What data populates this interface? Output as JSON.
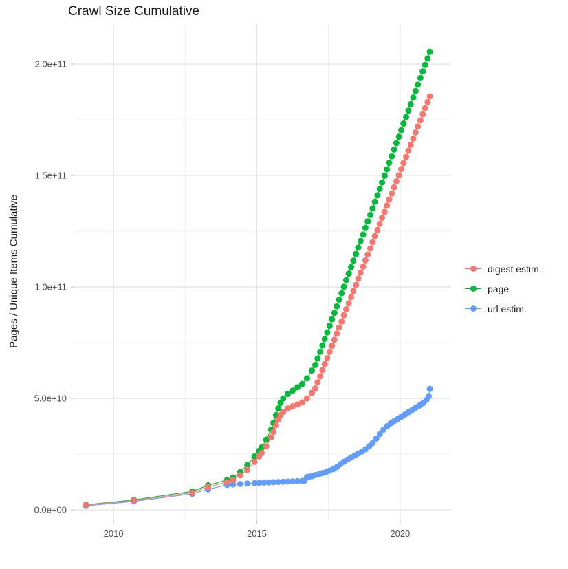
{
  "chart_data": {
    "type": "line-scatter",
    "title": "Crawl Size Cumulative",
    "xlabel": "",
    "ylabel": "Pages / Unique Items Cumulative",
    "y_unit": "1e9 (values below are billions)",
    "grid": "on",
    "legend_position": "right",
    "xlim": [
      2008.63,
      2021.78
    ],
    "ylim": [
      -4.6,
      217.9
    ],
    "x_major_ticks": [
      {
        "label": "2010",
        "value": 2010
      },
      {
        "label": "2015",
        "value": 2015
      },
      {
        "label": "2020",
        "value": 2020
      }
    ],
    "x_minor_gridlines": [
      2012.5,
      2017.5
    ],
    "y_major_ticks": [
      {
        "label": "0.0e+00",
        "value": 0
      },
      {
        "label": "5.0e+10",
        "value": 50
      },
      {
        "label": "1.0e+11",
        "value": 100
      },
      {
        "label": "1.5e+11",
        "value": 150
      },
      {
        "label": "2.0e+11",
        "value": 200
      }
    ],
    "y_minor_gridlines": [
      25,
      75,
      125,
      175
    ],
    "legend": [
      {
        "label": "digest estim.",
        "color": "#F8766D"
      },
      {
        "label": "page",
        "color": "#00BA38"
      },
      {
        "label": "url estim.",
        "color": "#619CFF"
      }
    ],
    "series": [
      {
        "name": "url estim.",
        "color": "#619CFF",
        "points": [
          [
            2009.04,
            1.8
          ],
          [
            2010.71,
            3.8
          ],
          [
            2012.75,
            7.2
          ],
          [
            2013.3,
            9.2
          ],
          [
            2013.96,
            11.2
          ],
          [
            2014.17,
            11.4
          ],
          [
            2014.42,
            11.6
          ],
          [
            2014.67,
            11.8
          ],
          [
            2014.92,
            12.0
          ],
          [
            2015.08,
            12.1
          ],
          [
            2015.25,
            12.2
          ],
          [
            2015.42,
            12.3
          ],
          [
            2015.58,
            12.4
          ],
          [
            2015.75,
            12.5
          ],
          [
            2015.92,
            12.6
          ],
          [
            2016.08,
            12.7
          ],
          [
            2016.25,
            12.8
          ],
          [
            2016.42,
            12.9
          ],
          [
            2016.58,
            13.0
          ],
          [
            2016.67,
            13.1
          ],
          [
            2016.75,
            14.7
          ],
          [
            2016.83,
            14.9
          ],
          [
            2016.92,
            15.1
          ],
          [
            2017.04,
            15.6
          ],
          [
            2017.17,
            16.0
          ],
          [
            2017.29,
            16.5
          ],
          [
            2017.42,
            17.0
          ],
          [
            2017.54,
            17.6
          ],
          [
            2017.67,
            18.3
          ],
          [
            2017.79,
            19.2
          ],
          [
            2017.92,
            20.5
          ],
          [
            2018.04,
            21.6
          ],
          [
            2018.17,
            22.6
          ],
          [
            2018.29,
            23.5
          ],
          [
            2018.42,
            24.4
          ],
          [
            2018.54,
            25.3
          ],
          [
            2018.67,
            26.2
          ],
          [
            2018.79,
            27.2
          ],
          [
            2018.92,
            28.5
          ],
          [
            2019.04,
            30.0
          ],
          [
            2019.17,
            32.0
          ],
          [
            2019.29,
            34.0
          ],
          [
            2019.42,
            36.0
          ],
          [
            2019.54,
            37.5
          ],
          [
            2019.67,
            38.8
          ],
          [
            2019.79,
            39.8
          ],
          [
            2019.92,
            40.8
          ],
          [
            2020.04,
            41.8
          ],
          [
            2020.17,
            42.8
          ],
          [
            2020.29,
            43.8
          ],
          [
            2020.42,
            44.8
          ],
          [
            2020.54,
            45.8
          ],
          [
            2020.67,
            46.8
          ],
          [
            2020.79,
            47.8
          ],
          [
            2020.92,
            49.3
          ],
          [
            2021.0,
            51.0
          ],
          [
            2021.04,
            54.3
          ]
        ]
      },
      {
        "name": "page",
        "color": "#00BA38",
        "points": [
          [
            2009.04,
            2.3
          ],
          [
            2010.71,
            4.5
          ],
          [
            2012.75,
            8.3
          ],
          [
            2013.3,
            11.0
          ],
          [
            2013.96,
            13.4
          ],
          [
            2014.17,
            14.5
          ],
          [
            2014.42,
            17.0
          ],
          [
            2014.67,
            20.0
          ],
          [
            2014.92,
            24.0
          ],
          [
            2015.08,
            26.5
          ],
          [
            2015.17,
            28.0
          ],
          [
            2015.33,
            31.5
          ],
          [
            2015.5,
            36.0
          ],
          [
            2015.58,
            39.0
          ],
          [
            2015.67,
            42.5
          ],
          [
            2015.75,
            45.5
          ],
          [
            2015.83,
            48.0
          ],
          [
            2015.92,
            50.0
          ],
          [
            2016.08,
            52.0
          ],
          [
            2016.25,
            53.5
          ],
          [
            2016.42,
            55.0
          ],
          [
            2016.58,
            56.5
          ],
          [
            2016.75,
            59.0
          ],
          [
            2016.92,
            62.5
          ],
          [
            2017.04,
            65.0
          ],
          [
            2017.12,
            67.9
          ],
          [
            2017.21,
            70.9
          ],
          [
            2017.29,
            73.8
          ],
          [
            2017.37,
            76.7
          ],
          [
            2017.46,
            79.6
          ],
          [
            2017.54,
            82.6
          ],
          [
            2017.62,
            85.5
          ],
          [
            2017.71,
            88.4
          ],
          [
            2017.79,
            91.3
          ],
          [
            2017.87,
            94.3
          ],
          [
            2017.96,
            97.2
          ],
          [
            2018.04,
            100.1
          ],
          [
            2018.12,
            103.1
          ],
          [
            2018.21,
            106.0
          ],
          [
            2018.29,
            108.9
          ],
          [
            2018.37,
            111.8
          ],
          [
            2018.46,
            114.8
          ],
          [
            2018.54,
            117.7
          ],
          [
            2018.62,
            120.6
          ],
          [
            2018.71,
            123.5
          ],
          [
            2018.79,
            126.5
          ],
          [
            2018.87,
            129.4
          ],
          [
            2018.96,
            132.3
          ],
          [
            2019.04,
            135.2
          ],
          [
            2019.12,
            138.2
          ],
          [
            2019.21,
            141.1
          ],
          [
            2019.29,
            144.0
          ],
          [
            2019.37,
            146.9
          ],
          [
            2019.46,
            149.9
          ],
          [
            2019.54,
            152.8
          ],
          [
            2019.62,
            155.7
          ],
          [
            2019.71,
            158.6
          ],
          [
            2019.79,
            161.6
          ],
          [
            2019.87,
            164.5
          ],
          [
            2019.96,
            167.4
          ],
          [
            2020.04,
            170.3
          ],
          [
            2020.12,
            173.3
          ],
          [
            2020.21,
            176.2
          ],
          [
            2020.29,
            179.1
          ],
          [
            2020.37,
            182.0
          ],
          [
            2020.46,
            185.0
          ],
          [
            2020.54,
            187.9
          ],
          [
            2020.62,
            190.8
          ],
          [
            2020.71,
            193.7
          ],
          [
            2020.79,
            196.7
          ],
          [
            2020.87,
            199.6
          ],
          [
            2020.96,
            202.5
          ],
          [
            2021.04,
            205.5
          ]
        ]
      },
      {
        "name": "digest estim.",
        "color": "#F8766D",
        "points": [
          [
            2009.04,
            2.2
          ],
          [
            2010.71,
            4.2
          ],
          [
            2012.75,
            7.7
          ],
          [
            2013.3,
            10.3
          ],
          [
            2013.96,
            12.4
          ],
          [
            2014.17,
            13.4
          ],
          [
            2014.42,
            15.5
          ],
          [
            2014.67,
            18.0
          ],
          [
            2014.92,
            21.5
          ],
          [
            2015.08,
            24.0
          ],
          [
            2015.17,
            25.5
          ],
          [
            2015.33,
            28.5
          ],
          [
            2015.5,
            32.5
          ],
          [
            2015.58,
            35.0
          ],
          [
            2015.67,
            38.0
          ],
          [
            2015.75,
            40.5
          ],
          [
            2015.83,
            42.5
          ],
          [
            2015.92,
            44.0
          ],
          [
            2016.08,
            45.5
          ],
          [
            2016.25,
            46.5
          ],
          [
            2016.42,
            47.3
          ],
          [
            2016.58,
            48.2
          ],
          [
            2016.75,
            50.0
          ],
          [
            2016.92,
            52.5
          ],
          [
            2017.04,
            54.5
          ],
          [
            2017.12,
            57.2
          ],
          [
            2017.21,
            59.9
          ],
          [
            2017.29,
            62.7
          ],
          [
            2017.37,
            65.4
          ],
          [
            2017.46,
            68.1
          ],
          [
            2017.54,
            70.9
          ],
          [
            2017.62,
            73.6
          ],
          [
            2017.71,
            76.3
          ],
          [
            2017.79,
            79.1
          ],
          [
            2017.87,
            81.8
          ],
          [
            2017.96,
            84.5
          ],
          [
            2018.04,
            87.3
          ],
          [
            2018.12,
            90.0
          ],
          [
            2018.21,
            92.7
          ],
          [
            2018.29,
            95.5
          ],
          [
            2018.37,
            98.2
          ],
          [
            2018.46,
            100.9
          ],
          [
            2018.54,
            103.7
          ],
          [
            2018.62,
            106.4
          ],
          [
            2018.71,
            109.1
          ],
          [
            2018.79,
            111.9
          ],
          [
            2018.87,
            114.6
          ],
          [
            2018.96,
            117.3
          ],
          [
            2019.04,
            120.1
          ],
          [
            2019.12,
            122.8
          ],
          [
            2019.21,
            125.5
          ],
          [
            2019.29,
            128.3
          ],
          [
            2019.37,
            131.0
          ],
          [
            2019.46,
            133.7
          ],
          [
            2019.54,
            136.5
          ],
          [
            2019.62,
            139.2
          ],
          [
            2019.71,
            141.9
          ],
          [
            2019.79,
            144.7
          ],
          [
            2019.87,
            147.4
          ],
          [
            2019.96,
            150.1
          ],
          [
            2020.04,
            152.9
          ],
          [
            2020.12,
            155.6
          ],
          [
            2020.21,
            158.3
          ],
          [
            2020.29,
            161.1
          ],
          [
            2020.37,
            163.8
          ],
          [
            2020.46,
            166.5
          ],
          [
            2020.54,
            169.3
          ],
          [
            2020.62,
            172.0
          ],
          [
            2020.71,
            174.7
          ],
          [
            2020.79,
            177.5
          ],
          [
            2020.87,
            180.2
          ],
          [
            2020.96,
            182.9
          ],
          [
            2021.04,
            185.5
          ]
        ]
      }
    ],
    "style": {
      "major_grid_color": "#E4E4E4",
      "minor_grid_color": "#EFEFEF",
      "tick_color": "#C9C9C9",
      "tick_label_color": "#4D4D4D",
      "point_radius": 4.5
    }
  }
}
